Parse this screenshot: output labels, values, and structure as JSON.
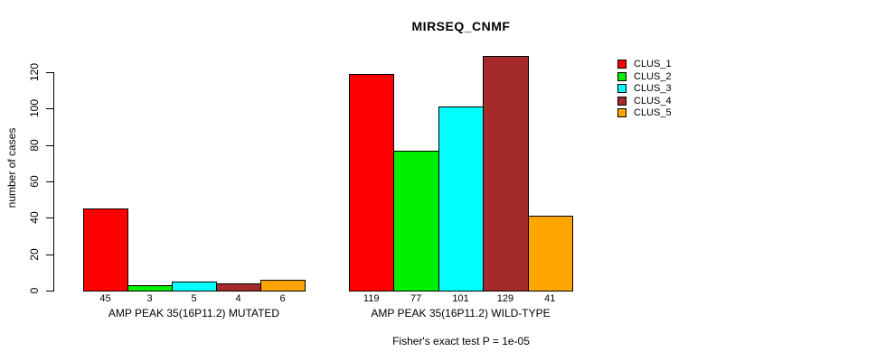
{
  "meta": {
    "background_color": "#FFFFFF",
    "plot_style": "R-base-barplot"
  },
  "chart_data": {
    "type": "bar",
    "title": "MIRSEQ_CNMF",
    "ylabel": "number of cases",
    "xlabel": "",
    "footer": "Fisher's exact test P = 1e-05",
    "ylim": [
      0,
      130
    ],
    "yticks": [
      0,
      20,
      40,
      60,
      80,
      100,
      120
    ],
    "grid": false,
    "bar_border_color": "#000000",
    "legend_position": "top-right-outside-bars",
    "series": [
      {
        "name": "CLUS_1",
        "color": "#FF0000",
        "values": [
          45,
          119
        ]
      },
      {
        "name": "CLUS_2",
        "color": "#00EE00",
        "values": [
          3,
          77
        ]
      },
      {
        "name": "CLUS_3",
        "color": "#00FFFF",
        "values": [
          5,
          101
        ]
      },
      {
        "name": "CLUS_4",
        "color": "#A52A2A",
        "values": [
          4,
          129
        ]
      },
      {
        "name": "CLUS_5",
        "color": "#FFA500",
        "values": [
          6,
          41
        ]
      }
    ],
    "groups": [
      {
        "label": "AMP PEAK 35(16P11.2) MUTATED",
        "values": [
          45,
          3,
          5,
          4,
          6
        ]
      },
      {
        "label": "AMP PEAK 35(16P11.2) WILD-TYPE",
        "values": [
          119,
          77,
          101,
          129,
          41
        ]
      }
    ],
    "legend": [
      {
        "label": "CLUS_1",
        "color": "#FF0000"
      },
      {
        "label": "CLUS_2",
        "color": "#00EE00"
      },
      {
        "label": "CLUS_3",
        "color": "#00FFFF"
      },
      {
        "label": "CLUS_4",
        "color": "#A52A2A"
      },
      {
        "label": "CLUS_5",
        "color": "#FFA500"
      }
    ]
  }
}
